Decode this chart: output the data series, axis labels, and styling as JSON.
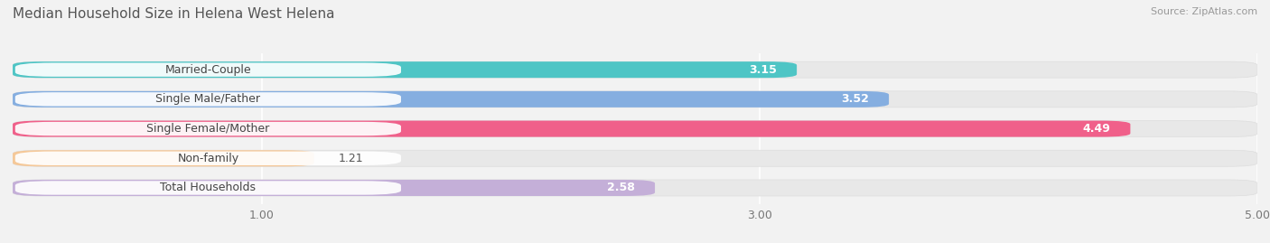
{
  "title": "Median Household Size in Helena West Helena",
  "source": "Source: ZipAtlas.com",
  "categories": [
    "Married-Couple",
    "Single Male/Father",
    "Single Female/Mother",
    "Non-family",
    "Total Households"
  ],
  "values": [
    3.15,
    3.52,
    4.49,
    1.21,
    2.58
  ],
  "bar_colors": [
    "#4ec5c5",
    "#85aee0",
    "#f0608a",
    "#f5c898",
    "#c4afd8"
  ],
  "xlim": [
    0,
    5.0
  ],
  "xticks": [
    1.0,
    3.0,
    5.0
  ],
  "xtick_labels": [
    "1.00",
    "3.00",
    "5.00"
  ],
  "background_color": "#f2f2f2",
  "row_bg_color": "#e8e8e8",
  "label_bg_color": "#ffffff",
  "title_fontsize": 11,
  "source_fontsize": 8,
  "label_fontsize": 9,
  "value_fontsize": 9
}
